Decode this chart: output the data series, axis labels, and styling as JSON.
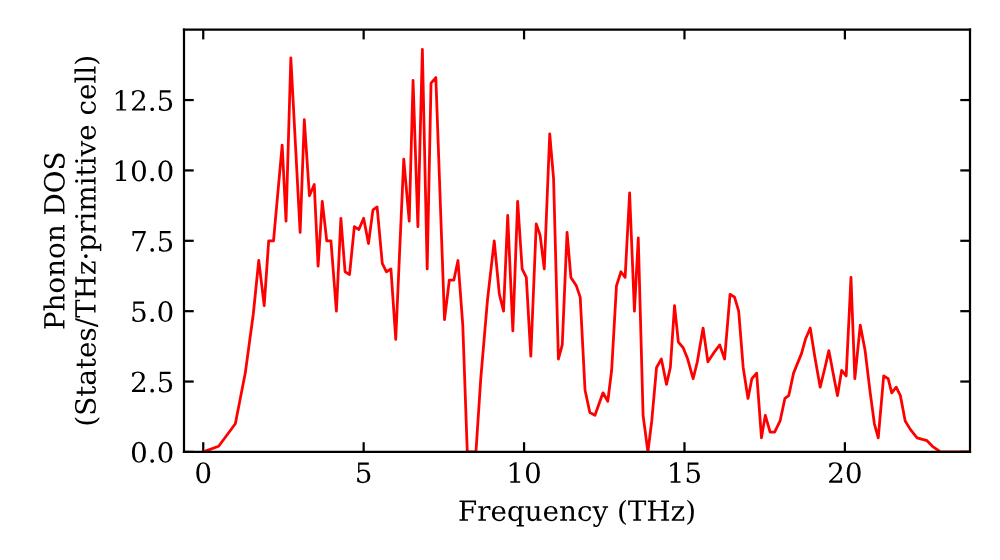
{
  "chart_data": {
    "type": "line",
    "xlabel": "Frequency (THz)",
    "ylabel": "Phonon DOS\n(States/THz·primitive cell)",
    "x": [
      0,
      0.48,
      1.0,
      1.31,
      1.56,
      1.73,
      1.9,
      2.04,
      2.19,
      2.46,
      2.58,
      2.73,
      3.02,
      3.15,
      3.31,
      3.46,
      3.58,
      3.71,
      3.85,
      3.98,
      4.15,
      4.29,
      4.42,
      4.56,
      4.71,
      4.85,
      5.0,
      5.15,
      5.29,
      5.42,
      5.58,
      5.71,
      5.85,
      6.0,
      6.25,
      6.42,
      6.54,
      6.69,
      6.83,
      6.98,
      7.1,
      7.25,
      7.52,
      7.67,
      7.81,
      7.94,
      8.09,
      8.23,
      8.5,
      8.65,
      8.86,
      9.07,
      9.23,
      9.36,
      9.49,
      9.65,
      9.8,
      9.94,
      10.07,
      10.21,
      10.38,
      10.5,
      10.63,
      10.8,
      10.92,
      11.07,
      11.19,
      11.34,
      11.46,
      11.63,
      11.75,
      11.9,
      12.05,
      12.21,
      12.46,
      12.61,
      12.73,
      12.88,
      13.02,
      13.15,
      13.29,
      13.44,
      13.56,
      13.71,
      13.86,
      13.98,
      14.13,
      14.28,
      14.44,
      14.56,
      14.69,
      14.81,
      14.96,
      15.1,
      15.27,
      15.4,
      15.58,
      15.73,
      15.9,
      16.1,
      16.25,
      16.42,
      16.56,
      16.69,
      16.83,
      16.98,
      17.1,
      17.25,
      17.4,
      17.52,
      17.67,
      17.81,
      17.98,
      18.13,
      18.25,
      18.4,
      18.65,
      18.77,
      18.92,
      19.06,
      19.23,
      19.38,
      19.5,
      19.65,
      19.77,
      19.9,
      20.04,
      20.19,
      20.31,
      20.48,
      20.63,
      20.79,
      20.92,
      21.04,
      21.21,
      21.35,
      21.46,
      21.6,
      21.73,
      21.88,
      22.04,
      22.25,
      22.56,
      22.73,
      22.98,
      23.9
    ],
    "series": [
      {
        "color": "#ff0000",
        "values": [
          0,
          0.2,
          1.0,
          2.8,
          4.9,
          6.8,
          5.2,
          7.5,
          7.5,
          10.9,
          8.2,
          14.0,
          7.8,
          11.8,
          9.1,
          9.5,
          6.6,
          8.9,
          7.5,
          7.5,
          5.0,
          8.3,
          6.4,
          6.3,
          8.0,
          7.9,
          8.3,
          7.4,
          8.6,
          8.7,
          6.7,
          6.4,
          6.5,
          4.0,
          10.4,
          8.2,
          13.2,
          8.0,
          14.3,
          6.5,
          13.1,
          13.3,
          4.7,
          6.1,
          6.1,
          6.8,
          4.5,
          0,
          0,
          2.6,
          5.4,
          7.5,
          5.6,
          5.0,
          8.4,
          4.3,
          8.9,
          6.5,
          6.2,
          3.4,
          8.1,
          7.7,
          6.5,
          11.3,
          9.7,
          3.3,
          3.8,
          7.8,
          6.2,
          5.9,
          5.5,
          2.2,
          1.4,
          1.3,
          2.1,
          1.8,
          2.9,
          5.9,
          6.4,
          6.2,
          9.2,
          5.0,
          7.6,
          1.3,
          0,
          1.1,
          3.0,
          3.3,
          2.4,
          3.0,
          5.2,
          3.9,
          3.7,
          3.3,
          2.6,
          3.2,
          4.4,
          3.2,
          3.5,
          3.8,
          3.3,
          5.6,
          5.5,
          5.0,
          3.0,
          1.9,
          2.6,
          2.8,
          0.5,
          1.3,
          0.7,
          0.7,
          1.1,
          1.9,
          2.0,
          2.8,
          3.5,
          4.0,
          4.4,
          3.4,
          2.3,
          3.0,
          3.6,
          2.7,
          2.0,
          2.9,
          2.7,
          6.2,
          2.6,
          4.5,
          3.6,
          2.1,
          1.0,
          0.5,
          2.7,
          2.6,
          2.1,
          2.3,
          2.0,
          1.1,
          0.8,
          0.5,
          0.4,
          0.2,
          0,
          0
        ]
      }
    ],
    "xlim": [
      -0.6,
      23.9
    ],
    "ylim": [
      0,
      15
    ],
    "xticks": [
      0,
      5,
      10,
      15,
      20
    ],
    "yticks": [
      {
        "value": 0,
        "label": "0.0"
      },
      {
        "value": 2.5,
        "label": "2.5"
      },
      {
        "value": 5,
        "label": "5.0"
      },
      {
        "value": 7.5,
        "label": "7.5"
      },
      {
        "value": 10,
        "label": "10.0"
      },
      {
        "value": 12.5,
        "label": "12.5"
      }
    ],
    "grid": false,
    "legend": false,
    "marker": "none",
    "line_style": "solid"
  }
}
